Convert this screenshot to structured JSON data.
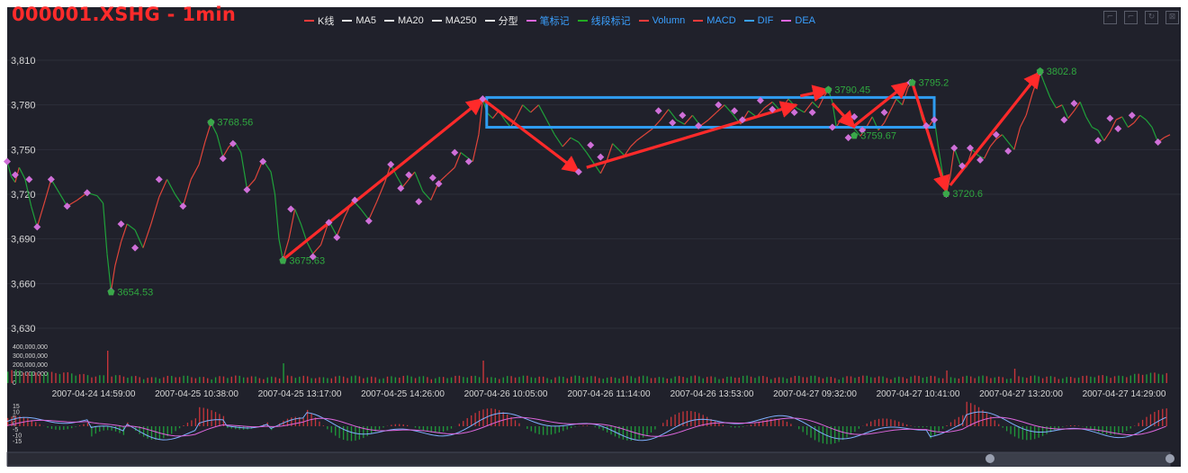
{
  "title": "000001.XSHG - 1min",
  "legend": [
    {
      "label": "K线",
      "color": "#ff3b3b"
    },
    {
      "label": "MA5",
      "color": "#e8e8e8"
    },
    {
      "label": "MA20",
      "color": "#e8e8e8"
    },
    {
      "label": "MA250",
      "color": "#e8e8e8"
    },
    {
      "label": "分型",
      "color": "#e8e8e8"
    },
    {
      "label": "笔标记",
      "color": "#dd66dd"
    },
    {
      "label": "线段标记",
      "color": "#22aa22"
    },
    {
      "label": "Volumn",
      "color": "#ff3b3b"
    },
    {
      "label": "MACD",
      "color": "#ff3b3b"
    },
    {
      "label": "DIF",
      "color": "#3aa0ff"
    },
    {
      "label": "DEA",
      "color": "#dd66dd"
    }
  ],
  "toolbox": [
    "zoom-icon",
    "zoom-reset-icon",
    "restore-icon",
    "save-icon"
  ],
  "chart_data": {
    "type": "line",
    "x_ticks": [
      "2007-04-24 14:59:00",
      "2007-04-25 10:38:00",
      "2007-04-25 13:17:00",
      "2007-04-25 14:26:00",
      "2007-04-26 10:05:00",
      "2007-04-26 11:14:00",
      "2007-04-26 13:53:00",
      "2007-04-27 09:32:00",
      "2007-04-27 10:41:00",
      "2007-04-27 13:20:00",
      "2007-04-27 14:29:00"
    ],
    "price_axis": {
      "ticks": [
        "3,810",
        "3,780",
        "3,750",
        "3,720",
        "3,690",
        "3,660",
        "3,630"
      ],
      "ylim": [
        3630,
        3810
      ]
    },
    "volume_axis": {
      "ticks": [
        "400,000,000",
        "300,000,000",
        "200,000,000",
        "100,000,000",
        "0"
      ],
      "ylim": [
        0,
        400000000
      ]
    },
    "macd_axis": {
      "ticks": [
        "15",
        "10",
        "5",
        "0",
        "-5",
        "-10",
        "-15"
      ],
      "ylim": [
        -15,
        15
      ]
    },
    "price_series": [
      [
        0,
        3742
      ],
      [
        2,
        3732
      ],
      [
        4,
        3728
      ],
      [
        6,
        3738
      ],
      [
        9,
        3730
      ],
      [
        12,
        3712
      ],
      [
        15,
        3698
      ],
      [
        19,
        3716
      ],
      [
        22,
        3730
      ],
      [
        26,
        3721
      ],
      [
        30,
        3712
      ],
      [
        35,
        3716
      ],
      [
        40,
        3721
      ],
      [
        45,
        3719
      ],
      [
        48,
        3714
      ],
      [
        50,
        3680
      ],
      [
        52,
        3655
      ],
      [
        54,
        3672
      ],
      [
        57,
        3688
      ],
      [
        60,
        3700
      ],
      [
        64,
        3696
      ],
      [
        68,
        3684
      ],
      [
        72,
        3700
      ],
      [
        76,
        3718
      ],
      [
        80,
        3730
      ],
      [
        84,
        3720
      ],
      [
        88,
        3712
      ],
      [
        92,
        3730
      ],
      [
        96,
        3740
      ],
      [
        99,
        3755
      ],
      [
        102,
        3768
      ],
      [
        105,
        3760
      ],
      [
        108,
        3745
      ],
      [
        111,
        3752
      ],
      [
        114,
        3755
      ],
      [
        117,
        3748
      ],
      [
        120,
        3724
      ],
      [
        124,
        3730
      ],
      [
        128,
        3743
      ],
      [
        132,
        3735
      ],
      [
        134,
        3720
      ],
      [
        136,
        3690
      ],
      [
        138,
        3676
      ],
      [
        141,
        3690
      ],
      [
        144,
        3710
      ],
      [
        147,
        3700
      ],
      [
        150,
        3688
      ],
      [
        153,
        3680
      ],
      [
        157,
        3686
      ],
      [
        161,
        3702
      ],
      [
        165,
        3692
      ],
      [
        169,
        3705
      ],
      [
        173,
        3716
      ],
      [
        177,
        3710
      ],
      [
        181,
        3703
      ],
      [
        185,
        3715
      ],
      [
        189,
        3728
      ],
      [
        192,
        3740
      ],
      [
        195,
        3732
      ],
      [
        198,
        3725
      ],
      [
        201,
        3730
      ],
      [
        204,
        3735
      ],
      [
        208,
        3722
      ],
      [
        212,
        3716
      ],
      [
        216,
        3728
      ],
      [
        220,
        3733
      ],
      [
        224,
        3738
      ],
      [
        227,
        3748
      ],
      [
        230,
        3745
      ],
      [
        233,
        3742
      ],
      [
        236,
        3760
      ],
      [
        238,
        3784
      ],
      [
        240,
        3775
      ],
      [
        243,
        3771
      ],
      [
        246,
        3776
      ],
      [
        249,
        3770
      ],
      [
        252,
        3765
      ],
      [
        255,
        3772
      ],
      [
        258,
        3780
      ],
      [
        262,
        3775
      ],
      [
        266,
        3780
      ],
      [
        270,
        3770
      ],
      [
        274,
        3760
      ],
      [
        278,
        3752
      ],
      [
        282,
        3758
      ],
      [
        286,
        3755
      ],
      [
        290,
        3748
      ],
      [
        294,
        3740
      ],
      [
        297,
        3734
      ],
      [
        300,
        3742
      ],
      [
        303,
        3754
      ],
      [
        306,
        3750
      ],
      [
        309,
        3746
      ],
      [
        312,
        3752
      ],
      [
        315,
        3756
      ],
      [
        319,
        3760
      ],
      [
        323,
        3764
      ],
      [
        327,
        3770
      ],
      [
        331,
        3777
      ],
      [
        335,
        3770
      ],
      [
        339,
        3767
      ],
      [
        343,
        3773
      ],
      [
        347,
        3766
      ],
      [
        351,
        3770
      ],
      [
        355,
        3775
      ],
      [
        359,
        3780
      ],
      [
        363,
        3774
      ],
      [
        367,
        3767
      ],
      [
        371,
        3776
      ],
      [
        375,
        3772
      ],
      [
        379,
        3778
      ],
      [
        383,
        3782
      ],
      [
        387,
        3776
      ],
      [
        391,
        3784
      ],
      [
        395,
        3778
      ],
      [
        399,
        3775
      ],
      [
        403,
        3782
      ],
      [
        406,
        3778
      ],
      [
        409,
        3786
      ],
      [
        411,
        3790
      ],
      [
        413,
        3782
      ],
      [
        415,
        3765
      ],
      [
        418,
        3772
      ],
      [
        421,
        3768
      ],
      [
        424,
        3764
      ],
      [
        427,
        3759
      ],
      [
        430,
        3765
      ],
      [
        433,
        3772
      ],
      [
        436,
        3763
      ],
      [
        439,
        3768
      ],
      [
        442,
        3776
      ],
      [
        445,
        3784
      ],
      [
        448,
        3780
      ],
      [
        451,
        3792
      ],
      [
        453,
        3795
      ],
      [
        455,
        3786
      ],
      [
        458,
        3770
      ],
      [
        461,
        3765
      ],
      [
        464,
        3771
      ],
      [
        466,
        3752
      ],
      [
        468,
        3735
      ],
      [
        470,
        3720
      ],
      [
        472,
        3732
      ],
      [
        474,
        3751
      ],
      [
        477,
        3740
      ],
      [
        480,
        3738
      ],
      [
        483,
        3750
      ],
      [
        486,
        3746
      ],
      [
        489,
        3744
      ],
      [
        492,
        3752
      ],
      [
        495,
        3757
      ],
      [
        498,
        3760
      ],
      [
        501,
        3755
      ],
      [
        504,
        3750
      ],
      [
        507,
        3765
      ],
      [
        510,
        3773
      ],
      [
        513,
        3787
      ],
      [
        515,
        3795
      ],
      [
        517,
        3802
      ],
      [
        519,
        3795
      ],
      [
        522,
        3785
      ],
      [
        525,
        3778
      ],
      [
        528,
        3780
      ],
      [
        531,
        3771
      ],
      [
        534,
        3776
      ],
      [
        537,
        3782
      ],
      [
        540,
        3772
      ],
      [
        543,
        3765
      ],
      [
        546,
        3763
      ],
      [
        549,
        3756
      ],
      [
        552,
        3762
      ],
      [
        555,
        3770
      ],
      [
        558,
        3772
      ],
      [
        561,
        3765
      ],
      [
        564,
        3768
      ],
      [
        567,
        3773
      ],
      [
        570,
        3770
      ],
      [
        573,
        3765
      ],
      [
        576,
        3755
      ],
      [
        579,
        3758
      ],
      [
        582,
        3760
      ]
    ],
    "bi_marks": [
      [
        0,
        3742
      ],
      [
        4,
        3733
      ],
      [
        11,
        3730
      ],
      [
        15,
        3698
      ],
      [
        22,
        3730
      ],
      [
        30,
        3712
      ],
      [
        40,
        3721
      ],
      [
        52,
        3655
      ],
      [
        57,
        3700
      ],
      [
        64,
        3684
      ],
      [
        76,
        3730
      ],
      [
        88,
        3712
      ],
      [
        102,
        3768
      ],
      [
        108,
        3744
      ],
      [
        113,
        3754
      ],
      [
        120,
        3723
      ],
      [
        128,
        3742
      ],
      [
        138,
        3676
      ],
      [
        142,
        3710
      ],
      [
        153,
        3678
      ],
      [
        161,
        3701
      ],
      [
        165,
        3691
      ],
      [
        174,
        3716
      ],
      [
        181,
        3702
      ],
      [
        192,
        3740
      ],
      [
        197,
        3724
      ],
      [
        201,
        3733
      ],
      [
        206,
        3715
      ],
      [
        213,
        3731
      ],
      [
        216,
        3727
      ],
      [
        224,
        3748
      ],
      [
        231,
        3742
      ],
      [
        238,
        3784
      ],
      [
        286,
        3735
      ],
      [
        292,
        3753
      ],
      [
        297,
        3745
      ],
      [
        326,
        3776
      ],
      [
        333,
        3768
      ],
      [
        338,
        3773
      ],
      [
        346,
        3766
      ],
      [
        356,
        3780
      ],
      [
        364,
        3776
      ],
      [
        368,
        3770
      ],
      [
        377,
        3783
      ],
      [
        383,
        3777
      ],
      [
        394,
        3775
      ],
      [
        403,
        3775
      ],
      [
        411,
        3790
      ],
      [
        413,
        3765
      ],
      [
        421,
        3758
      ],
      [
        424,
        3772
      ],
      [
        428,
        3763
      ],
      [
        439,
        3775
      ],
      [
        452,
        3795
      ],
      [
        460,
        3766
      ],
      [
        464,
        3770
      ],
      [
        470,
        3720
      ],
      [
        474,
        3751
      ],
      [
        478,
        3739
      ],
      [
        482,
        3751
      ],
      [
        487,
        3743
      ],
      [
        495,
        3760
      ],
      [
        501,
        3749
      ],
      [
        517,
        3802
      ],
      [
        529,
        3770
      ],
      [
        534,
        3781
      ],
      [
        546,
        3756
      ],
      [
        552,
        3771
      ],
      [
        556,
        3764
      ],
      [
        563,
        3773
      ],
      [
        576,
        3755
      ]
    ],
    "fractal_labels": [
      {
        "i": 52,
        "v": 3654.53,
        "label": "3654.53"
      },
      {
        "i": 102,
        "v": 3768.56,
        "label": "3768.56"
      },
      {
        "i": 138,
        "v": 3675.63,
        "label": "3675.63"
      },
      {
        "i": 411,
        "v": 3790.45,
        "label": "3790.45"
      },
      {
        "i": 424,
        "v": 3759.67,
        "label": "3759.67"
      },
      {
        "i": 453,
        "v": 3795.2,
        "label": "3795.2"
      },
      {
        "i": 470,
        "v": 3720.6,
        "label": "3720.6"
      },
      {
        "i": 517,
        "v": 3802.8,
        "label": "3802.8"
      }
    ],
    "segment_arrows": [
      [
        138,
        3676,
        238,
        3784
      ],
      [
        238,
        3784,
        286,
        3735
      ],
      [
        290,
        3738,
        395,
        3780
      ],
      [
        397,
        3786,
        411,
        3790
      ],
      [
        413,
        3781,
        424,
        3765
      ],
      [
        424,
        3766,
        451,
        3795
      ],
      [
        453,
        3795,
        470,
        3722
      ],
      [
        472,
        3726,
        517,
        3802
      ]
    ],
    "zhongshu_box": {
      "i0": 240,
      "i1": 464,
      "v_low": 3765,
      "v_high": 3785
    }
  }
}
